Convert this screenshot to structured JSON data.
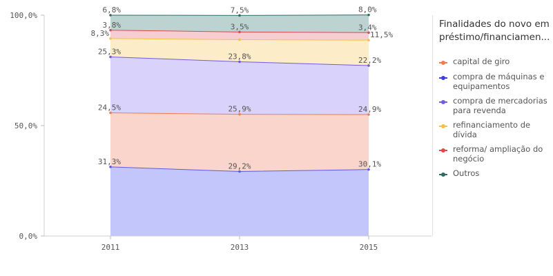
{
  "chart_data": {
    "type": "area",
    "stacked": true,
    "x": [
      "2011",
      "2013",
      "2015"
    ],
    "ylim": [
      0,
      100
    ],
    "yticks": [
      "0,0%",
      "50,0%",
      "100,0%"
    ],
    "series": [
      {
        "name": "compra de máquinas e equipamentos",
        "values": [
          31.3,
          29.2,
          30.1
        ],
        "labels": [
          "31,3%",
          "29,2%",
          "30,1%"
        ],
        "line_color": "#5b5be6",
        "fill_color": "#c3c6fb"
      },
      {
        "name": "capital de giro",
        "values": [
          24.5,
          25.9,
          24.9
        ],
        "labels": [
          "24,5%",
          "25,9%",
          "24,9%"
        ],
        "line_color": "#f07c4f",
        "fill_color": "#f9d5cb"
      },
      {
        "name": "compra de mercadorias para revenda",
        "values": [
          25.3,
          23.8,
          22.2
        ],
        "labels": [
          "25,3%",
          "23,8%",
          "22,2%"
        ],
        "line_color": "#6f5be6",
        "fill_color": "#d9d2fa"
      },
      {
        "name": "refinanciamento de dívida",
        "values": [
          8.3,
          10.0,
          11.5
        ],
        "labels": [
          "8,3%",
          "",
          "11,5%"
        ],
        "line_color": "#f5c04a",
        "fill_color": "#fcecc7"
      },
      {
        "name": "reforma/ ampliação do negócio",
        "values": [
          3.8,
          3.5,
          3.4
        ],
        "labels": [
          "3,8%",
          "3,5%",
          "3,4%"
        ],
        "line_color": "#e0474c",
        "fill_color": "#f6cdd0"
      },
      {
        "name": "Outros",
        "values": [
          6.8,
          7.5,
          8.0
        ],
        "labels": [
          "6,8%",
          "7,5%",
          "8,0%"
        ],
        "line_color": "#2f6b64",
        "fill_color": "#bcd3d2"
      }
    ],
    "legend_position": "right",
    "grid": false
  },
  "legend": {
    "title": "Finalidades do novo em préstimo/financiamen...",
    "items": [
      {
        "label": "capital de giro",
        "color": "#f07c4f"
      },
      {
        "label": "compra de máquinas e equipamentos",
        "color": "#3d3de0"
      },
      {
        "label": "compra de mercadorias para revenda",
        "color": "#6f5be6"
      },
      {
        "label": "refinanciamento de dívida",
        "color": "#f5c04a"
      },
      {
        "label": "reforma/ ampliação do negócio",
        "color": "#e0474c"
      },
      {
        "label": "Outros",
        "color": "#2f6b64"
      }
    ]
  }
}
